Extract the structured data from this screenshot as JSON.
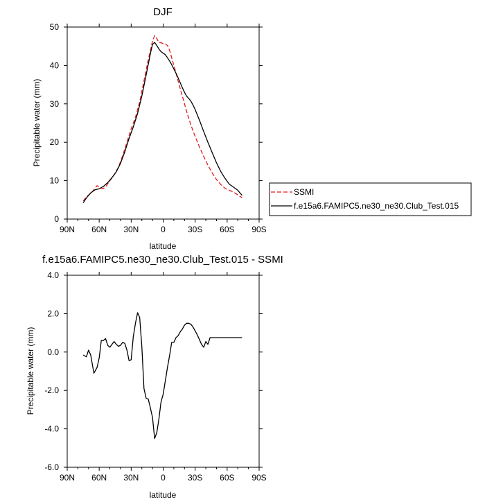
{
  "chart_data": [
    {
      "type": "line",
      "title": "DJF",
      "xlabel": "latitude",
      "ylabel": "Precipitable water (mm)",
      "xlim": [
        90,
        -90
      ],
      "ylim": [
        0,
        50
      ],
      "x_ticks": [
        90,
        60,
        30,
        0,
        -30,
        -60,
        -90
      ],
      "x_tick_labels": [
        "90N",
        "60N",
        "30N",
        "0",
        "30S",
        "60S",
        "90S"
      ],
      "y_ticks": [
        0,
        10,
        20,
        30,
        40,
        50
      ],
      "y_tick_labels": [
        "0",
        "10",
        "20",
        "30",
        "40",
        "50"
      ],
      "legend_position": "right",
      "series": [
        {
          "name": "SSMI",
          "color": "#e31a1c",
          "dash": "dashed",
          "x": [
            75,
            72,
            68,
            66,
            64,
            62,
            60,
            58,
            56,
            54,
            52,
            50,
            46,
            42,
            38,
            34,
            30,
            26,
            22,
            18,
            14,
            10,
            8,
            6,
            4,
            2,
            0,
            -2,
            -4,
            -6,
            -8,
            -10,
            -12,
            -14,
            -18,
            -22,
            -26,
            -30,
            -34,
            -38,
            -42,
            -46,
            -50,
            -54,
            -58,
            -62,
            -66,
            -70,
            -72,
            -74
          ],
          "y": [
            4.7,
            5.8,
            6.7,
            7.3,
            8.0,
            8.7,
            8.3,
            8.0,
            8.0,
            8.4,
            9.2,
            10.0,
            11.5,
            13.5,
            16.5,
            20.0,
            23.5,
            26.5,
            30.5,
            36.0,
            41.5,
            46.3,
            47.8,
            47.0,
            46.0,
            45.9,
            45.7,
            45.6,
            45.2,
            44.0,
            42.0,
            40.0,
            38.0,
            36.0,
            32.0,
            28.0,
            24.5,
            21.5,
            18.8,
            16.3,
            14.0,
            12.0,
            10.3,
            9.0,
            8.0,
            7.5,
            7.0,
            6.3,
            5.9,
            5.6
          ]
        },
        {
          "name": "f.e15a6.FAMIPC5.ne30_ne30.Club_Test.015",
          "color": "#000000",
          "dash": "solid",
          "x": [
            75,
            72,
            68,
            64,
            60,
            56,
            52,
            48,
            44,
            40,
            36,
            32,
            28,
            24,
            20,
            16,
            12,
            10,
            8,
            6,
            4,
            2,
            0,
            -2,
            -4,
            -6,
            -8,
            -10,
            -12,
            -14,
            -16,
            -18,
            -20,
            -22,
            -24,
            -26,
            -28,
            -30,
            -34,
            -38,
            -42,
            -46,
            -50,
            -54,
            -58,
            -62,
            -66,
            -70,
            -72,
            -74
          ],
          "y": [
            4.2,
            5.5,
            6.8,
            7.6,
            7.9,
            8.5,
            9.5,
            10.8,
            12.3,
            14.5,
            17.5,
            21.0,
            24.0,
            27.5,
            32.0,
            37.5,
            43.0,
            45.5,
            46.0,
            45.2,
            44.3,
            43.6,
            43.2,
            42.8,
            42.0,
            41.2,
            40.2,
            39.1,
            38.0,
            36.8,
            35.5,
            34.2,
            33.0,
            32.0,
            31.4,
            30.7,
            29.7,
            28.5,
            25.8,
            22.8,
            20.0,
            17.3,
            14.7,
            12.4,
            10.6,
            9.1,
            8.3,
            7.5,
            6.8,
            6.2
          ]
        }
      ]
    },
    {
      "type": "line",
      "title": "f.e15a6.FAMIPC5.ne30_ne30.Club_Test.015 - SSMI",
      "xlabel": "latitude",
      "ylabel": "Precipitable water (mm)",
      "xlim": [
        90,
        -90
      ],
      "ylim": [
        -6,
        4
      ],
      "x_ticks": [
        90,
        60,
        30,
        0,
        -30,
        -60,
        -90
      ],
      "x_tick_labels": [
        "90N",
        "60N",
        "30N",
        "0",
        "30S",
        "60S",
        "90S"
      ],
      "y_ticks": [
        -6,
        -4,
        -2,
        0,
        2,
        4
      ],
      "y_tick_labels": [
        "-6.0",
        "-4.0",
        "-2.0",
        "0.0",
        "2.0",
        "4.0"
      ],
      "series": [
        {
          "name": "",
          "color": "#000000",
          "dash": "solid",
          "x": [
            75,
            72,
            70,
            68,
            65,
            62,
            60,
            58,
            56,
            54,
            52,
            50,
            48,
            46,
            44,
            42,
            40,
            38,
            36,
            34,
            32,
            30,
            28,
            26,
            24,
            22,
            20,
            18,
            16,
            14,
            12,
            10,
            8,
            6,
            4,
            2,
            0,
            -2,
            -4,
            -6,
            -8,
            -10,
            -12,
            -14,
            -16,
            -18,
            -20,
            -22,
            -24,
            -26,
            -28,
            -30,
            -32,
            -34,
            -36,
            -38,
            -40,
            -42,
            -44,
            -46,
            -48,
            -50,
            -52,
            -54,
            -56,
            -58,
            -60,
            -62,
            -64,
            -66,
            -68,
            -70,
            -72,
            -74
          ],
          "y": [
            -0.15,
            -0.25,
            0.1,
            -0.15,
            -1.1,
            -0.8,
            -0.3,
            0.6,
            0.6,
            0.7,
            0.35,
            0.25,
            0.4,
            0.55,
            0.4,
            0.3,
            0.35,
            0.5,
            0.45,
            0.1,
            -0.45,
            -0.4,
            0.8,
            1.5,
            2.05,
            1.8,
            0.3,
            -1.9,
            -2.4,
            -2.45,
            -2.9,
            -3.4,
            -4.5,
            -4.2,
            -3.5,
            -2.6,
            -2.2,
            -1.5,
            -0.8,
            -0.2,
            0.5,
            0.5,
            0.75,
            0.85,
            1.05,
            1.2,
            1.4,
            1.5,
            1.5,
            1.45,
            1.3,
            1.1,
            0.9,
            0.65,
            0.4,
            0.25,
            0.55,
            0.4,
            0.75,
            0.75,
            0.75,
            0.75,
            0.75,
            0.75,
            0.75,
            0.75,
            0.75,
            0.75,
            0.75,
            0.75,
            0.75,
            0.75,
            0.75,
            0.75
          ]
        }
      ]
    }
  ]
}
